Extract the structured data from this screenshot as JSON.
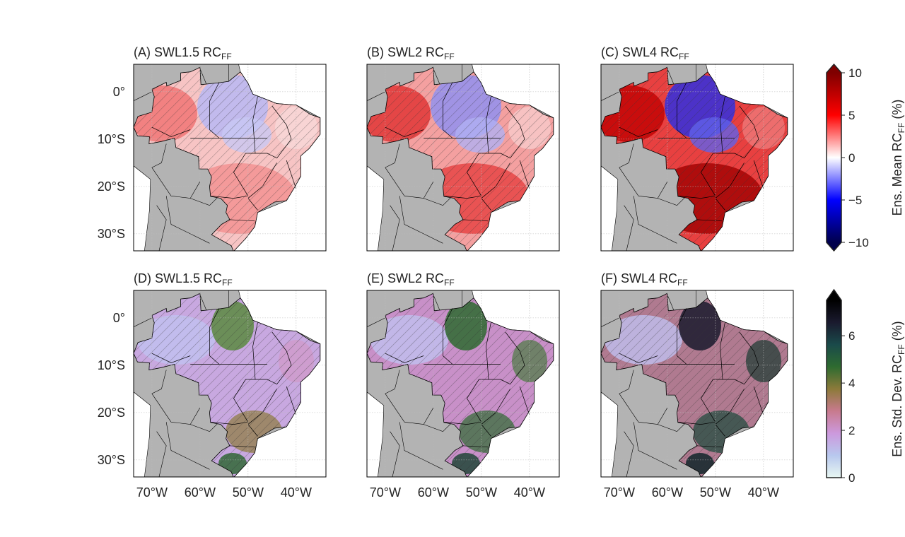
{
  "panels": [
    {
      "title": "(A) SWL1.5 RC",
      "sub": "FF",
      "kind": "mean",
      "level": 1
    },
    {
      "title": "(B) SWL2 RC",
      "sub": "FF",
      "kind": "mean",
      "level": 2
    },
    {
      "title": "(C) SWL4 RC",
      "sub": "FF",
      "kind": "mean",
      "level": 3
    },
    {
      "title": "(D) SWL1.5 RC",
      "sub": "FF",
      "kind": "std",
      "level": 1
    },
    {
      "title": "(E) SWL2 RC",
      "sub": "FF",
      "kind": "std",
      "level": 2
    },
    {
      "title": "(F) SWL4 RC",
      "sub": "FF",
      "kind": "std",
      "level": 3
    }
  ],
  "lat_ticks": [
    {
      "v": 0,
      "label": "0°"
    },
    {
      "v": -10,
      "label": "10°S"
    },
    {
      "v": -20,
      "label": "20°S"
    },
    {
      "v": -30,
      "label": "30°S"
    }
  ],
  "lon_ticks": [
    {
      "v": -70,
      "label": "70°W"
    },
    {
      "v": -60,
      "label": "60°W"
    },
    {
      "v": -50,
      "label": "50°W"
    },
    {
      "v": -40,
      "label": "40°W"
    }
  ],
  "map_extent": {
    "lon": [
      -73.8,
      -33.8
    ],
    "lat": [
      -33.6,
      5.8
    ]
  },
  "colorbars": [
    {
      "label": "Ens. Mean RC",
      "sub": "FF",
      "unit": " (%)",
      "min": -10,
      "max": 10,
      "ticks": [
        "10",
        "5",
        "0",
        "−5",
        "−10"
      ],
      "tick_values": [
        10,
        5,
        0,
        -5,
        -10
      ],
      "extend": "both",
      "colors": [
        "#00004c",
        "#0000ff",
        "#ffffff",
        "#ff0000",
        "#7f0000"
      ]
    },
    {
      "label": "Ens. Std. Dev. RC",
      "sub": "FF",
      "unit": " (%)",
      "min": 0,
      "max": 7.5,
      "ticks": [
        "6",
        "4",
        "2",
        "0"
      ],
      "tick_values": [
        6,
        4,
        2,
        0
      ],
      "extend": "max",
      "colors": [
        "#e8f7f2",
        "#b8c8ee",
        "#cc99dd",
        "#c87a8e",
        "#8c7a3a",
        "#2e6b30",
        "#1a4a4a",
        "#1a1a2e",
        "#000000"
      ]
    }
  ],
  "colors": {
    "land": "#b3b3b3",
    "hatch": "#333333"
  }
}
